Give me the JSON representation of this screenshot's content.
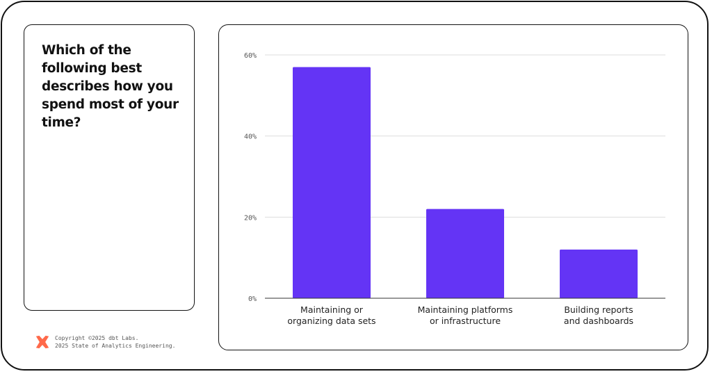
{
  "question": "Which of the following best describes how you spend most of your time?",
  "footer": {
    "copyright": "Copyright ©2025 dbt Labs.",
    "report": "2025 State of Analytics Engineering."
  },
  "colors": {
    "bar": "#6434F5",
    "logo": "#FF694A",
    "gridline": "#DDDDDD",
    "axis": "#333333"
  },
  "icons": {
    "logo": "dbt-logo-icon"
  },
  "chart_data": {
    "type": "bar",
    "categories": [
      [
        "Maintaining or",
        "organizing data sets"
      ],
      [
        "Maintaining platforms",
        "or infrastructure"
      ],
      [
        "Building reports",
        "and dashboards"
      ]
    ],
    "values": [
      57,
      22,
      12
    ],
    "ylim": [
      0,
      60
    ],
    "yticks": [
      0,
      20,
      40,
      60
    ],
    "ytick_labels": [
      "0%",
      "20%",
      "40%",
      "60%"
    ],
    "grid": true,
    "legend": false
  }
}
